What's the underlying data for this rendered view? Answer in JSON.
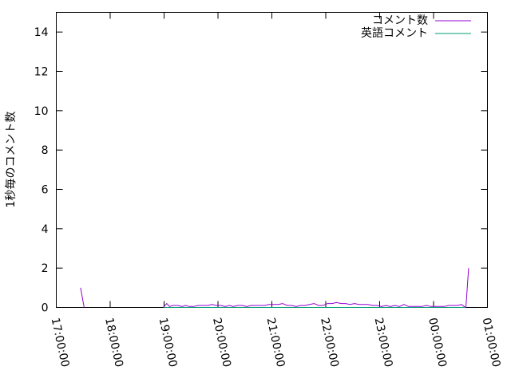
{
  "chart_data": {
    "type": "line",
    "title": "",
    "xlabel": "",
    "ylabel": "1秒毎のコメント数",
    "xlim": [
      "17:00:00",
      "01:00:00"
    ],
    "ylim": [
      0,
      15
    ],
    "x_ticks": [
      "17:00:00",
      "18:00:00",
      "19:00:00",
      "20:00:00",
      "21:00:00",
      "22:00:00",
      "23:00:00",
      "00:00:00",
      "01:00:00"
    ],
    "y_ticks": [
      "0",
      "2",
      "4",
      "6",
      "8",
      "10",
      "12",
      "14"
    ],
    "grid": false,
    "legend_position": "top-right",
    "series": [
      {
        "name": "コメント数",
        "color": "#9400d3",
        "segments": [
          [
            [
              "17:27",
              1.0
            ],
            [
              "17:31",
              0
            ]
          ],
          [
            [
              "18:59",
              0
            ],
            [
              "19:01",
              0.1
            ],
            [
              "19:03",
              0.2
            ],
            [
              "19:06",
              0.05
            ],
            [
              "19:10",
              0.1
            ],
            [
              "19:15",
              0.1
            ],
            [
              "19:20",
              0.05
            ],
            [
              "19:24",
              0.1
            ],
            [
              "19:28",
              0.05
            ],
            [
              "19:33",
              0.05
            ],
            [
              "19:38",
              0.1
            ],
            [
              "19:44",
              0.1
            ],
            [
              "19:49",
              0.1
            ],
            [
              "19:53",
              0.15
            ],
            [
              "19:58",
              0.1
            ],
            [
              "20:03",
              0.1
            ],
            [
              "20:08",
              0.05
            ],
            [
              "20:13",
              0.1
            ],
            [
              "20:17",
              0.05
            ],
            [
              "20:22",
              0.1
            ],
            [
              "20:27",
              0.1
            ],
            [
              "20:32",
              0.05
            ],
            [
              "20:37",
              0.1
            ],
            [
              "20:42",
              0.1
            ],
            [
              "20:47",
              0.1
            ],
            [
              "20:52",
              0.1
            ],
            [
              "20:57",
              0.15
            ],
            [
              "21:02",
              0.15
            ],
            [
              "21:07",
              0.15
            ],
            [
              "21:12",
              0.2
            ],
            [
              "21:17",
              0.1
            ],
            [
              "21:22",
              0.1
            ],
            [
              "21:27",
              0.05
            ],
            [
              "21:32",
              0.1
            ],
            [
              "21:37",
              0.1
            ],
            [
              "21:42",
              0.15
            ],
            [
              "21:47",
              0.2
            ],
            [
              "21:52",
              0.1
            ],
            [
              "21:57",
              0.1
            ],
            [
              "22:02",
              0.2
            ],
            [
              "22:07",
              0.2
            ],
            [
              "22:12",
              0.25
            ],
            [
              "22:17",
              0.2
            ],
            [
              "22:22",
              0.2
            ],
            [
              "22:27",
              0.15
            ],
            [
              "22:32",
              0.2
            ],
            [
              "22:37",
              0.15
            ],
            [
              "22:42",
              0.15
            ],
            [
              "22:47",
              0.15
            ],
            [
              "22:52",
              0.1
            ],
            [
              "22:57",
              0.1
            ],
            [
              "23:02",
              0.05
            ],
            [
              "23:07",
              0.1
            ],
            [
              "23:12",
              0.05
            ],
            [
              "23:17",
              0.1
            ],
            [
              "23:22",
              0.05
            ],
            [
              "23:27",
              0.15
            ],
            [
              "23:32",
              0.05
            ],
            [
              "23:37",
              0.05
            ],
            [
              "23:42",
              0.05
            ],
            [
              "23:47",
              0.05
            ],
            [
              "23:52",
              0.1
            ],
            [
              "23:57",
              0.05
            ],
            [
              "00:02",
              0.05
            ],
            [
              "00:07",
              0.05
            ],
            [
              "00:12",
              0.05
            ],
            [
              "00:17",
              0.1
            ],
            [
              "00:22",
              0.1
            ],
            [
              "00:27",
              0.1
            ],
            [
              "00:31",
              0.15
            ],
            [
              "00:34",
              0.05
            ],
            [
              "00:36",
              0
            ],
            [
              "00:39",
              2.0
            ]
          ]
        ]
      },
      {
        "name": "英語コメント",
        "color": "#009e73",
        "segments": [
          [
            [
              "19:00",
              0
            ],
            [
              "19:30",
              0
            ],
            [
              "20:00",
              0
            ],
            [
              "20:30",
              0
            ],
            [
              "21:00",
              0
            ],
            [
              "21:30",
              0
            ],
            [
              "22:00",
              0
            ],
            [
              "22:30",
              0
            ],
            [
              "23:00",
              0
            ],
            [
              "23:30",
              0
            ],
            [
              "00:00",
              0
            ],
            [
              "00:36",
              0
            ]
          ]
        ]
      }
    ]
  }
}
